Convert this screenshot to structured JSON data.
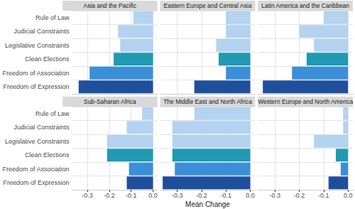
{
  "chart_data": {
    "type": "bar",
    "orientation": "horizontal",
    "xlabel": "Mean Change",
    "grid": true,
    "categories": [
      "Rule of Law",
      "Judicial Constraints",
      "Legislative Constraints",
      "Clean Elections",
      "Freedom of Association",
      "Freedom of Expression"
    ],
    "colors": [
      "#b3d3f0",
      "#b3d3f0",
      "#b3d3f0",
      "#1f9ab0",
      "#3b8fd8",
      "#1f4f9c"
    ],
    "xlim": [
      -0.37,
      0.02
    ],
    "xticks": [
      -0.3,
      -0.2,
      -0.1,
      {
        "value": 0,
        "label": "0.0"
      }
    ],
    "series": [
      {
        "name": "Asia and the Pacific",
        "values": [
          -0.09,
          -0.16,
          -0.15,
          -0.18,
          -0.29,
          -0.34
        ]
      },
      {
        "name": "Eastern Europe and Central Asia",
        "values": [
          -0.1,
          -0.1,
          -0.14,
          -0.13,
          -0.1,
          -0.23
        ]
      },
      {
        "name": "Latin America and the Caribbean",
        "values": [
          -0.1,
          -0.2,
          -0.14,
          -0.17,
          -0.23,
          -0.35
        ]
      },
      {
        "name": "Sub-Saharan Africa",
        "values": [
          -0.05,
          -0.12,
          -0.21,
          -0.21,
          -0.11,
          -0.12
        ]
      },
      {
        "name": "The Middle East and North Africa",
        "values": [
          -0.23,
          -0.32,
          -0.32,
          -0.32,
          -0.31,
          -0.36
        ]
      },
      {
        "name": "Western Europe and North America",
        "values": [
          -0.02,
          -0.02,
          -0.14,
          -0.05,
          -0.03,
          -0.08
        ]
      }
    ]
  }
}
